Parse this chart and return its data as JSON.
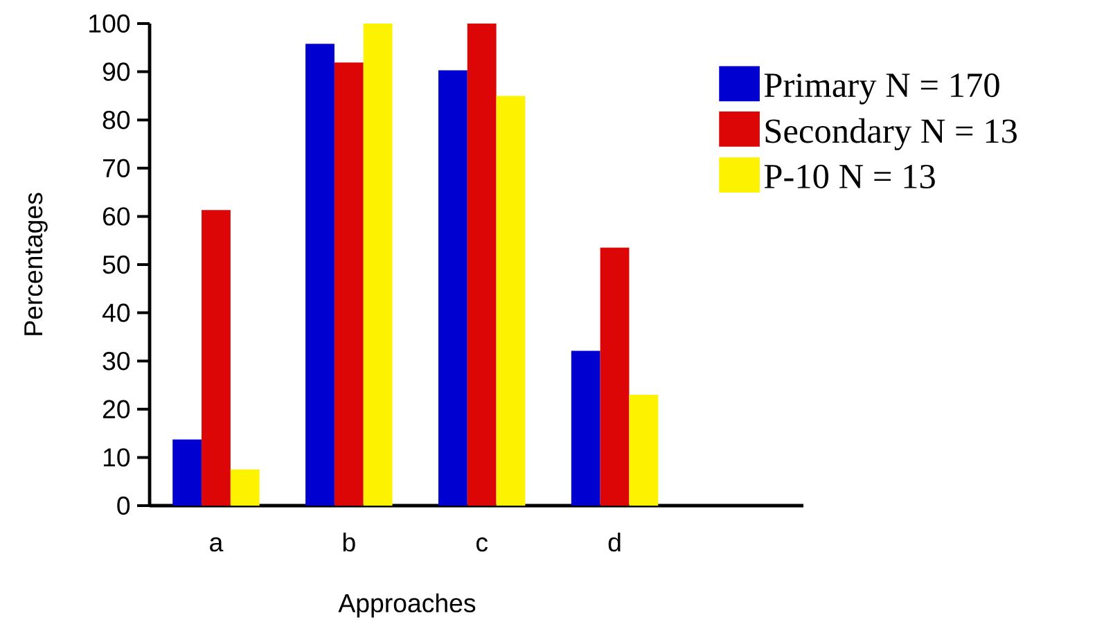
{
  "chart_data": {
    "type": "bar",
    "xlabel": "Approaches",
    "ylabel": "Percentages",
    "categories": [
      "a",
      "b",
      "c",
      "d",
      null
    ],
    "series": [
      {
        "name": "Primary N = 170",
        "color": "#0000d0",
        "values": [
          13.7,
          95.8,
          90.3,
          32.1,
          null
        ]
      },
      {
        "name": "Secondary N = 13",
        "color": "#dd0606",
        "values": [
          61.3,
          91.9,
          100,
          53.5,
          null
        ]
      },
      {
        "name": "P-10 N = 13",
        "color": "#fdf200",
        "values": [
          7.5,
          100,
          85.0,
          23.0,
          null
        ]
      }
    ],
    "ylim": [
      0,
      100
    ],
    "yticks": [
      0,
      10,
      20,
      30,
      40,
      50,
      60,
      70,
      80,
      90,
      100
    ],
    "grid": false,
    "legend": "right"
  }
}
